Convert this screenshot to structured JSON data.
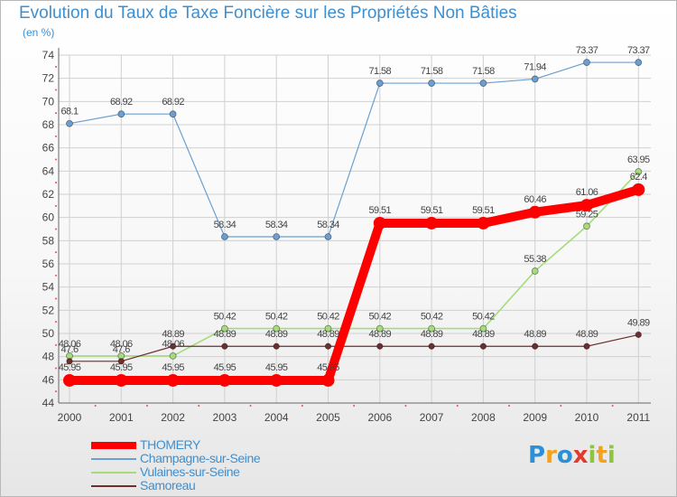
{
  "chart_data": {
    "type": "line",
    "title": "Evolution du Taux de Taxe Foncière sur les Propriétés Non Bâties",
    "subtitle": "(en %)",
    "x": [
      "2000",
      "2001",
      "2002",
      "2003",
      "2004",
      "2005",
      "2006",
      "2007",
      "2008",
      "2009",
      "2010",
      "2011"
    ],
    "ylim": [
      44,
      74
    ],
    "yticks": [
      44,
      46,
      48,
      50,
      52,
      54,
      56,
      58,
      60,
      62,
      64,
      66,
      68,
      70,
      72,
      74
    ],
    "grid": true,
    "legend_position": "bottom-left",
    "series": [
      {
        "name": "THOMERY",
        "color": "#ff0000",
        "values": [
          45.95,
          45.95,
          45.95,
          45.95,
          45.95,
          45.95,
          59.51,
          59.51,
          59.51,
          60.46,
          61.06,
          62.4
        ],
        "labels": [
          "45.95",
          "45.95",
          "45.95",
          "45.95",
          "45.95",
          "45.95",
          "59.51",
          "59.51",
          "59.51",
          "60.46",
          "61.06",
          "62.4"
        ]
      },
      {
        "name": "Champagne-sur-Seine",
        "color": "#6b9fd1",
        "values": [
          68.1,
          68.92,
          68.92,
          58.34,
          58.34,
          58.34,
          71.58,
          71.58,
          71.58,
          71.94,
          73.37,
          73.37
        ],
        "labels": [
          "68.1",
          "68.92",
          "68.92",
          "58.34",
          "58.34",
          "58.34",
          "71.58",
          "71.58",
          "71.58",
          "71.94",
          "73.37",
          "73.37"
        ]
      },
      {
        "name": "Vulaines-sur-Seine",
        "color": "#a4dc7c",
        "values": [
          48.06,
          48.06,
          48.06,
          50.42,
          50.42,
          50.42,
          50.42,
          50.42,
          50.42,
          55.38,
          59.25,
          63.95
        ],
        "labels": [
          "48.06",
          "48.06",
          "48.06",
          "50.42",
          "50.42",
          "50.42",
          "50.42",
          "50.42",
          "50.42",
          "55.38",
          "59.25",
          "63.95"
        ]
      },
      {
        "name": "Samoreau",
        "color": "#6e2e2e",
        "values": [
          47.6,
          47.6,
          48.89,
          48.89,
          48.89,
          48.89,
          48.89,
          48.89,
          48.89,
          48.89,
          48.89,
          49.89
        ],
        "labels": [
          "47.6",
          "47.6",
          "48.89",
          "48.89",
          "48.89",
          "48.89",
          "48.89",
          "48.89",
          "48.89",
          "48.89",
          "48.89",
          "49.89"
        ]
      }
    ]
  },
  "logo": {
    "letters": [
      "P",
      "r",
      "o",
      "x",
      "i",
      "t",
      "i"
    ],
    "colors": [
      "#2d8fd6",
      "#f2a21c",
      "#2d8fd6",
      "#e23b2c",
      "#8cc63f",
      "#f2a21c",
      "#8cc63f"
    ]
  }
}
